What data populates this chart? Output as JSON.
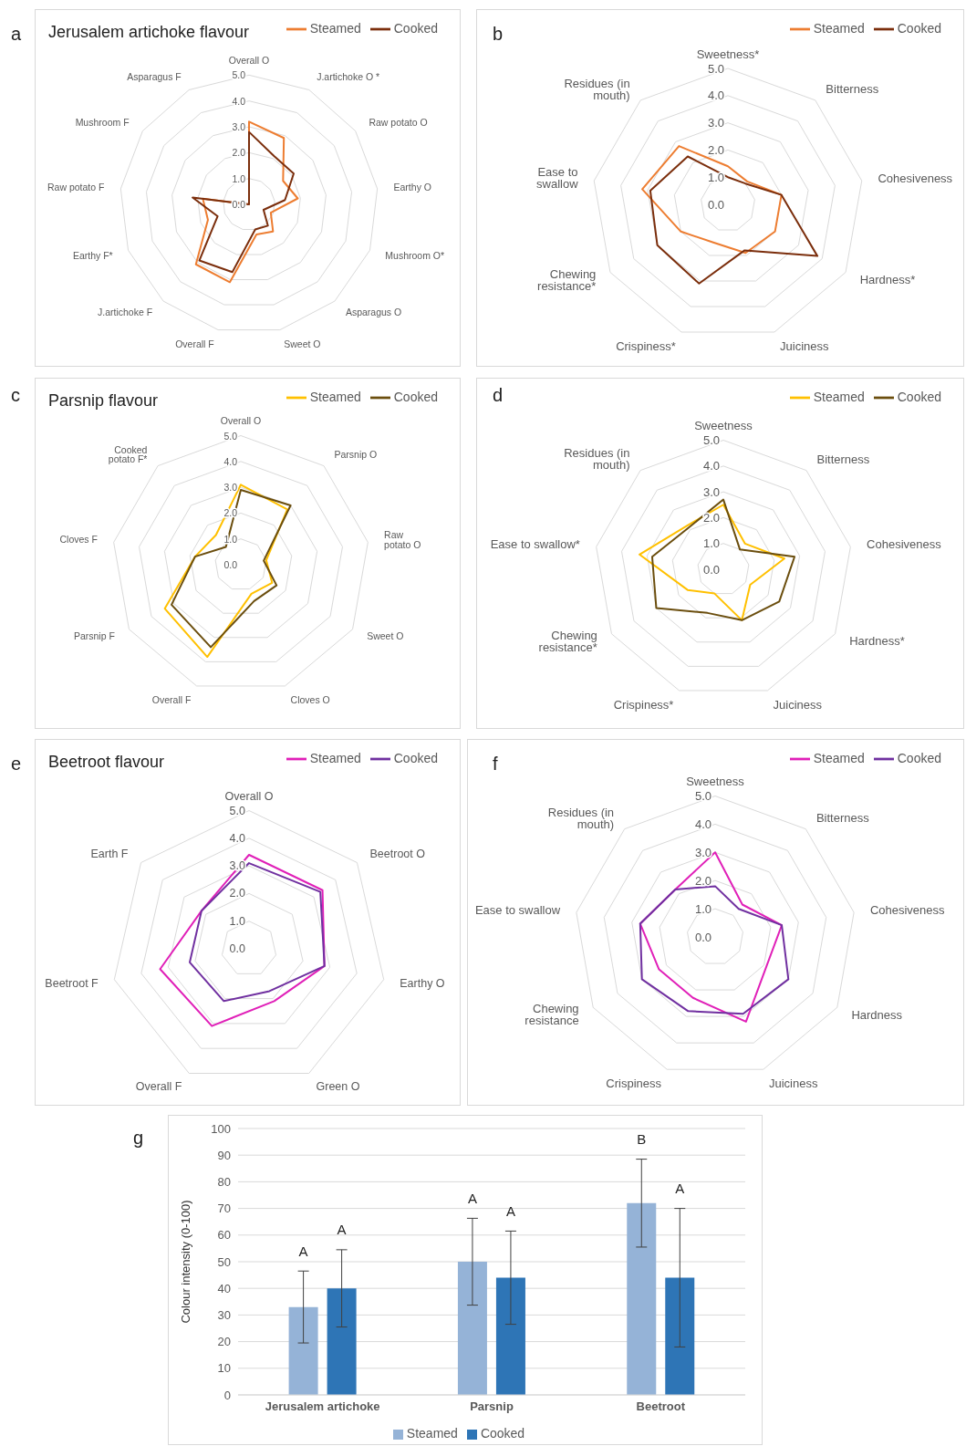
{
  "chart_data": [
    {
      "type": "radar",
      "title": "Jerusalem artichoke flavour",
      "annotations": [
        "a"
      ],
      "categories": [
        "Overall O",
        "J.artichoke O *",
        "Raw potato O",
        "Earthy O",
        "Mushroom O*",
        "Asparagus O",
        "Sweet O",
        "Overall F",
        "J.artichoke F",
        "Earthy F*",
        "Raw potato F",
        "Mushroom F",
        "Asparagus F"
      ],
      "series": [
        {
          "name": "Steamed",
          "color": "#ed7d31",
          "values": [
            3.2,
            2.9,
            1.6,
            1.9,
            0.9,
            1.4,
            1.2,
            3.1,
            3.1,
            1.7,
            1.8,
            0,
            0
          ]
        },
        {
          "name": "Cooked",
          "color": "#7b2e0c",
          "values": [
            2.8,
            2.1,
            2.1,
            1.4,
            0.6,
            1.1,
            1.0,
            2.7,
            2.9,
            1.3,
            2.2,
            0,
            0
          ]
        }
      ],
      "ylim": [
        0,
        5
      ],
      "yticks": [
        {
          "value": 0,
          "label": "0.0"
        },
        {
          "value": 1,
          "label": "1.0"
        },
        {
          "value": 2,
          "label": "2.0"
        },
        {
          "value": 3,
          "label": "3.0"
        },
        {
          "value": 4,
          "label": "4.0"
        },
        {
          "value": 5,
          "label": "5.0"
        }
      ],
      "grid": true,
      "legend": "top right"
    },
    {
      "type": "radar",
      "annotations": [
        "b"
      ],
      "categories": [
        "Sweetness*",
        "Bitterness",
        "Cohesiveness",
        "Hardness*",
        "Juiciness",
        "Crispiness*",
        "Chewing resistance*",
        "Ease to swallow",
        "Residues (in mouth)"
      ],
      "series": [
        {
          "name": "Steamed",
          "color": "#ed7d31",
          "values": [
            1.4,
            1.1,
            2.0,
            2.0,
            1.9,
            1.5,
            2.0,
            3.2,
            2.8
          ]
        },
        {
          "name": "Cooked",
          "color": "#7b2e0c",
          "values": [
            1.0,
            1.0,
            2.0,
            3.8,
            1.8,
            3.1,
            3.0,
            2.9,
            2.3
          ]
        }
      ],
      "ylim": [
        0,
        5
      ],
      "yticks": [
        {
          "value": 0,
          "label": "0.0"
        },
        {
          "value": 1,
          "label": "1.0"
        },
        {
          "value": 2,
          "label": "2.0"
        },
        {
          "value": 3,
          "label": "3.0"
        },
        {
          "value": 4,
          "label": "4.0"
        },
        {
          "value": 5,
          "label": "5.0"
        }
      ],
      "grid": true,
      "legend": "top right"
    },
    {
      "type": "radar",
      "title": "Parsnip flavour",
      "annotations": [
        "c"
      ],
      "categories": [
        "Overall O",
        "Parsnip O",
        "Raw potato O",
        "Sweet O",
        "Cloves O",
        "Overall F",
        "Parsnip F",
        "Cloves F",
        "Cooked potato F*"
      ],
      "series": [
        {
          "name": "Steamed",
          "color": "#ffc000",
          "values": [
            3.1,
            2.8,
            1.0,
            1.4,
            1.2,
            3.8,
            3.4,
            1.8,
            1.5
          ]
        },
        {
          "name": "Cooked",
          "color": "#6b4e0e",
          "values": [
            2.9,
            3.0,
            0.9,
            1.6,
            1.5,
            3.4,
            3.1,
            1.8,
            0.9
          ]
        }
      ],
      "ylim": [
        0,
        5
      ],
      "yticks": [
        {
          "value": 0,
          "label": "0.0"
        },
        {
          "value": 1,
          "label": "1.0"
        },
        {
          "value": 2,
          "label": "2.0"
        },
        {
          "value": 3,
          "label": "3.0"
        },
        {
          "value": 4,
          "label": "4.0"
        },
        {
          "value": 5,
          "label": "5.0"
        }
      ],
      "grid": true,
      "legend": "top right"
    },
    {
      "type": "radar",
      "annotations": [
        "d"
      ],
      "categories": [
        "Sweetness",
        "Bitterness",
        "Cohesiveness",
        "Hardness*",
        "Juiciness",
        "Crispiness*",
        "Chewing resistance*",
        "Ease to swallow*",
        "Residues (in mouth)"
      ],
      "series": [
        {
          "name": "Steamed",
          "color": "#ffc000",
          "values": [
            2.5,
            1.3,
            2.4,
            1.2,
            2.1,
            1.0,
            1.6,
            3.3,
            2.2
          ]
        },
        {
          "name": "Cooked",
          "color": "#6b4e0e",
          "values": [
            2.7,
            1.0,
            2.8,
            2.5,
            2.1,
            1.8,
            3.0,
            2.8,
            2.1
          ]
        }
      ],
      "ylim": [
        0,
        5
      ],
      "yticks": [
        {
          "value": 0,
          "label": "0.0"
        },
        {
          "value": 1,
          "label": "1.0"
        },
        {
          "value": 2,
          "label": "2.0"
        },
        {
          "value": 3,
          "label": "3.0"
        },
        {
          "value": 4,
          "label": "4.0"
        },
        {
          "value": 5,
          "label": "5.0"
        }
      ],
      "grid": true,
      "legend": "top right"
    },
    {
      "type": "radar",
      "title": "Beetroot flavour",
      "annotations": [
        "e"
      ],
      "categories": [
        "Overall O",
        "Beetroot O",
        "Earthy O",
        "Green O",
        "Overall F",
        "Beetroot F",
        "Earth F"
      ],
      "series": [
        {
          "name": "Steamed",
          "color": "#e020b8",
          "values": [
            3.4,
            3.4,
            2.8,
            2.1,
            3.1,
            3.3,
            2.2
          ]
        },
        {
          "name": "Cooked",
          "color": "#7030a0",
          "values": [
            3.1,
            3.3,
            2.8,
            1.7,
            2.1,
            2.2,
            2.2
          ]
        }
      ],
      "ylim": [
        0,
        5
      ],
      "yticks": [
        {
          "value": 0,
          "label": "0.0"
        },
        {
          "value": 1,
          "label": "1.0"
        },
        {
          "value": 2,
          "label": "2.0"
        },
        {
          "value": 3,
          "label": "3.0"
        },
        {
          "value": 4,
          "label": "4.0"
        },
        {
          "value": 5,
          "label": "5.0"
        }
      ],
      "grid": true,
      "legend": "top right"
    },
    {
      "type": "radar",
      "annotations": [
        "f"
      ],
      "categories": [
        "Sweetness",
        "Bitterness",
        "Cohesiveness",
        "Hardness",
        "Juiciness",
        "Crispiness",
        "Chewing resistance",
        "Ease to swallow",
        "Residues (in mouth)"
      ],
      "series": [
        {
          "name": "Steamed",
          "color": "#e020b8",
          "values": [
            3.0,
            1.5,
            2.4,
            2.1,
            3.2,
            2.3,
            2.3,
            2.7,
            2.2
          ]
        },
        {
          "name": "Cooked",
          "color": "#7030a0",
          "values": [
            1.8,
            1.3,
            2.4,
            3.0,
            2.9,
            2.8,
            3.0,
            2.7,
            2.2
          ]
        }
      ],
      "ylim": [
        0,
        5
      ],
      "yticks": [
        {
          "value": 0,
          "label": "0.0"
        },
        {
          "value": 1,
          "label": "1.0"
        },
        {
          "value": 2,
          "label": "2.0"
        },
        {
          "value": 3,
          "label": "3.0"
        },
        {
          "value": 4,
          "label": "4.0"
        },
        {
          "value": 5,
          "label": "5.0"
        }
      ],
      "grid": true,
      "legend": "top right"
    },
    {
      "type": "bar",
      "ylabel": "Colour intensity (0-100)",
      "categories": [
        "Jerusalem artichoke",
        "Parsnip",
        "Beetroot"
      ],
      "series": [
        {
          "name": "Steamed",
          "color": "#95b3d7",
          "values": [
            33,
            50,
            72
          ],
          "errors": [
            13.5,
            16.3,
            16.5
          ]
        },
        {
          "name": "Cooked",
          "color": "#2e75b6",
          "values": [
            40,
            44,
            44
          ],
          "errors": [
            14.5,
            17.5,
            26
          ]
        }
      ],
      "annotations": [
        "g",
        "A",
        "A",
        "A",
        "A",
        "B",
        "A"
      ],
      "ylim": [
        0,
        100
      ],
      "yticks": [
        0,
        10,
        20,
        30,
        40,
        50,
        60,
        70,
        80,
        90,
        100
      ],
      "grid": "y",
      "legend": "bottom"
    }
  ]
}
